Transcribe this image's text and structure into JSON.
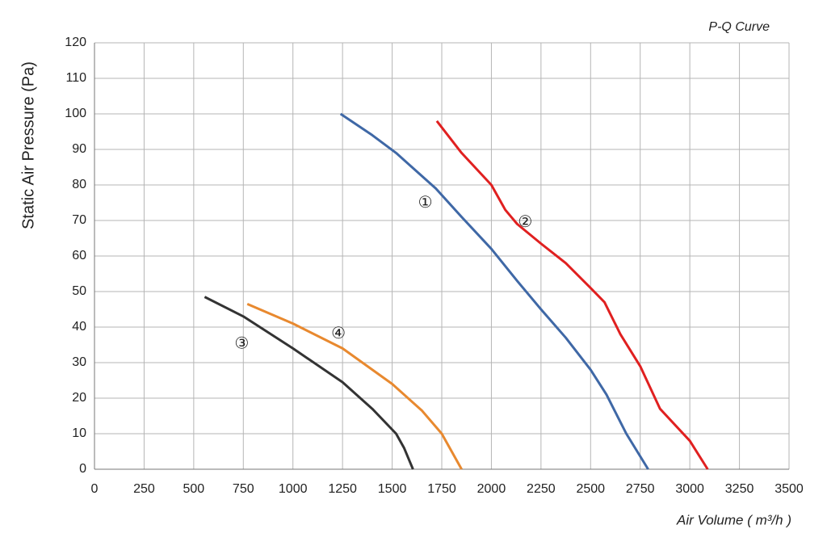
{
  "chart_data": {
    "type": "line",
    "title": "P-Q Curve",
    "x_label": "Air Volume ( m³/h )",
    "y_label": "Static Air Pressure  (Pa)",
    "xlim": [
      0,
      3500
    ],
    "ylim": [
      0,
      120
    ],
    "xticks": [
      0,
      250,
      500,
      750,
      1000,
      1250,
      1500,
      1750,
      2000,
      2250,
      2500,
      2750,
      3000,
      3250,
      3500
    ],
    "yticks": [
      0,
      10,
      20,
      30,
      40,
      50,
      60,
      70,
      80,
      90,
      100,
      110,
      120
    ],
    "grid": true,
    "series": [
      {
        "name": "①",
        "color": "#3f68a6",
        "x": [
          1240,
          1400,
          1520,
          1600,
          1720,
          1850,
          2000,
          2130,
          2250,
          2375,
          2500,
          2580,
          2680,
          2790
        ],
        "values": [
          100,
          94,
          89,
          85,
          79,
          71,
          62,
          53,
          45,
          37,
          28,
          21,
          10,
          0
        ]
      },
      {
        "name": "②",
        "color": "#e02020",
        "x": [
          1725,
          1850,
          2000,
          2070,
          2130,
          2250,
          2375,
          2500,
          2570,
          2650,
          2750,
          2850,
          3000,
          3090
        ],
        "values": [
          98,
          89,
          80,
          73,
          69,
          63.5,
          58,
          51,
          47,
          38,
          29,
          17,
          8,
          0
        ]
      },
      {
        "name": "③",
        "color": "#333333",
        "x": [
          555,
          750,
          1000,
          1250,
          1400,
          1520,
          1560,
          1605
        ],
        "values": [
          48.5,
          43,
          34,
          24.5,
          17,
          10,
          6,
          0
        ]
      },
      {
        "name": "④",
        "color": "#e8892f",
        "x": [
          770,
          1000,
          1250,
          1500,
          1650,
          1750,
          1850
        ],
        "values": [
          46.5,
          41,
          34,
          24,
          16.5,
          10,
          0
        ]
      }
    ]
  }
}
